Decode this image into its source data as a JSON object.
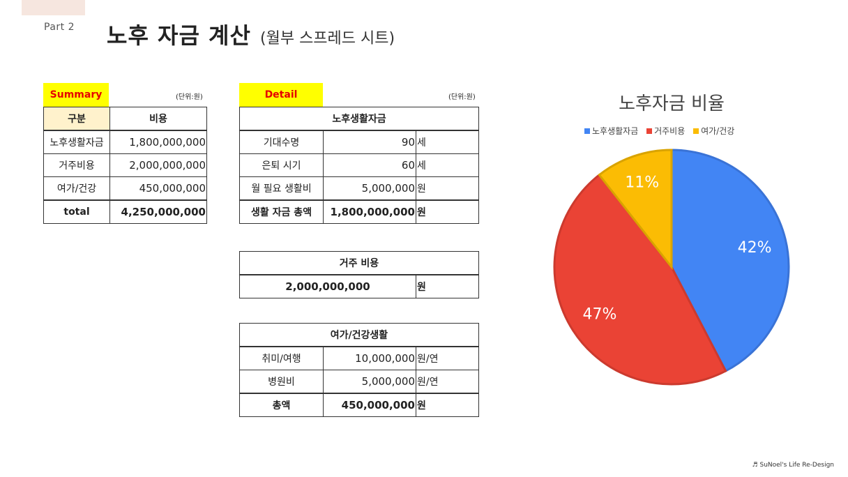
{
  "header": {
    "part": "Part 2",
    "title": "노후 자금 계산",
    "subtitle": "(월부 스프레드 시트)"
  },
  "summary": {
    "tag": "Summary",
    "unit": "(단위:원)",
    "col_category": "구분",
    "col_cost": "비용",
    "rows": [
      {
        "label": "노후생활자금",
        "value": "1,800,000,000"
      },
      {
        "label": "거주비용",
        "value": "2,000,000,000"
      },
      {
        "label": "여가/건강",
        "value": "450,000,000"
      }
    ],
    "total_label": "total",
    "total_value": "4,250,000,000"
  },
  "detail": {
    "tag": "Detail",
    "unit": "(단위:원)",
    "living": {
      "header": "노후생활자금",
      "rows": [
        {
          "label": "기대수명",
          "value": "90",
          "unit": "세"
        },
        {
          "label": "은퇴 시기",
          "value": "60",
          "unit": "세"
        },
        {
          "label": "월 필요 생활비",
          "value": "5,000,000",
          "unit": "원"
        },
        {
          "label": "생활 자금 총액",
          "value": "1,800,000,000",
          "unit": "원"
        }
      ]
    },
    "housing": {
      "header": "거주 비용",
      "value": "2,000,000,000",
      "unit": "원"
    },
    "leisure": {
      "header": "여가/건강생활",
      "rows": [
        {
          "label": "취미/여행",
          "value": "10,000,000",
          "unit": "원/연"
        },
        {
          "label": "병원비",
          "value": "5,000,000",
          "unit": "원/연"
        },
        {
          "label": "총액",
          "value": "450,000,000",
          "unit": "원"
        }
      ]
    }
  },
  "chart_data": {
    "type": "pie",
    "title": "노후자금 비율",
    "legend_position": "top",
    "categories": [
      "노후생활자금",
      "거주비용",
      "여가/건강"
    ],
    "values": [
      1800000000,
      2000000000,
      450000000
    ],
    "labels": [
      "42%",
      "47%",
      "11%"
    ],
    "colors": [
      "#4285f4",
      "#ea4335",
      "#fbbc04"
    ]
  },
  "footer": {
    "credit": "♬ SuNoel's Life Re-Design"
  }
}
